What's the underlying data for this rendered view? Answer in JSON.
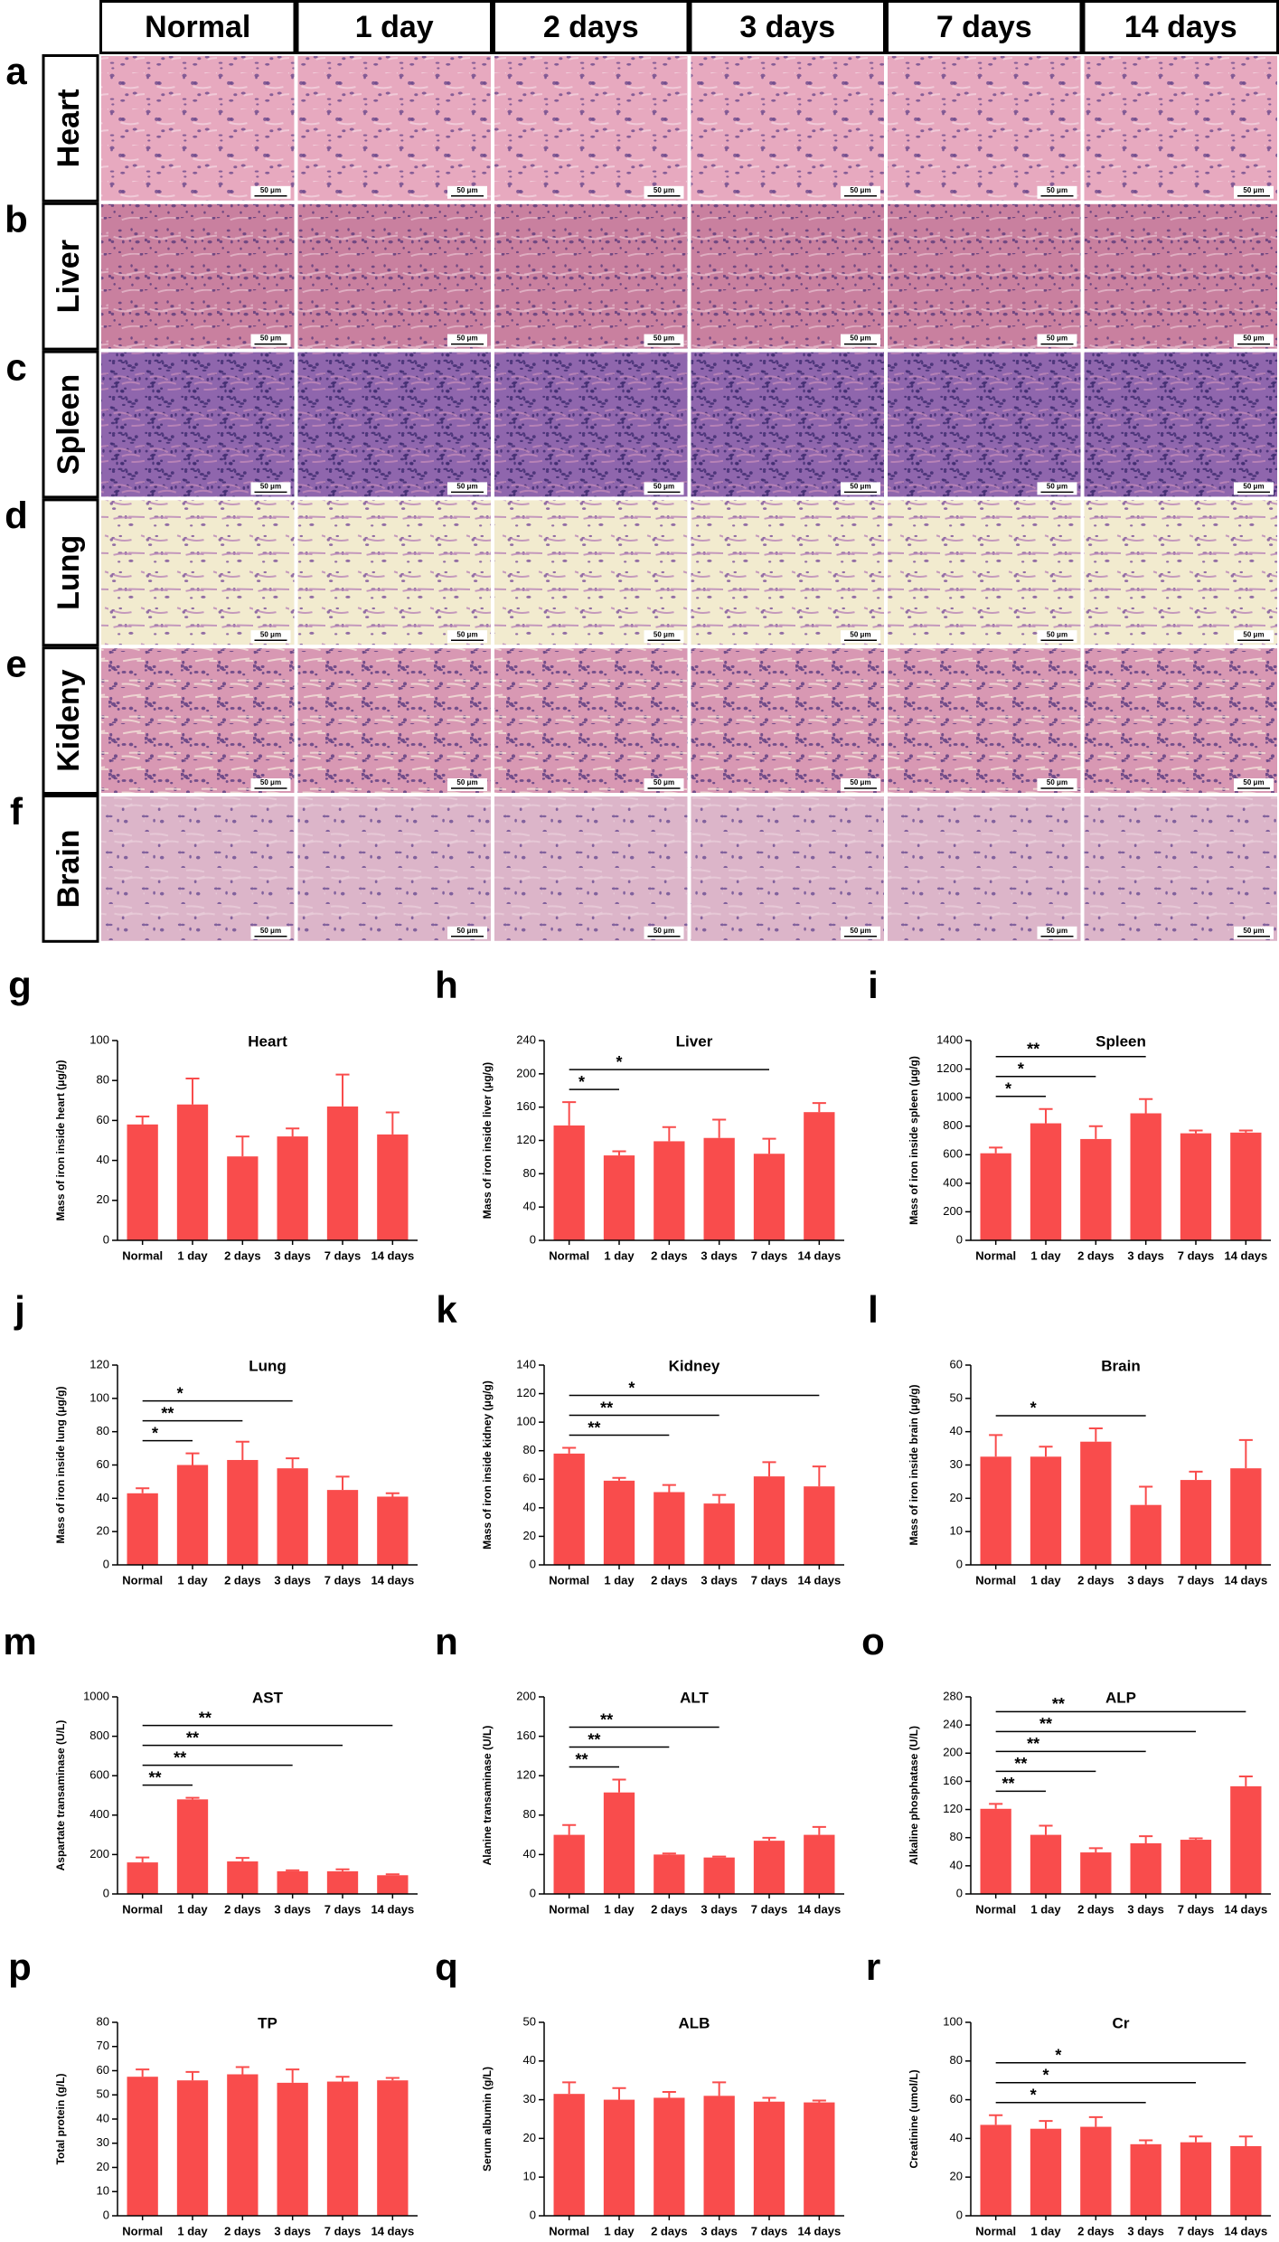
{
  "histology": {
    "columns": [
      "Normal",
      "1 day",
      "2 days",
      "3 days",
      "7 days",
      "14 days"
    ],
    "rows": [
      {
        "panel": "a",
        "label": "Heart"
      },
      {
        "panel": "b",
        "label": "Liver"
      },
      {
        "panel": "c",
        "label": "Spleen"
      },
      {
        "panel": "d",
        "label": "Lung"
      },
      {
        "panel": "e",
        "label": "Kideny"
      },
      {
        "panel": "f",
        "label": "Brain"
      }
    ],
    "scale_bar": "50 μm"
  },
  "chart_data": [
    {
      "type": "bar",
      "panel": "g",
      "title": "Heart",
      "y_label": "Mass of iron inside heart (μg/g)",
      "color": "#f94c4c",
      "categories": [
        "Normal",
        "1 day",
        "2 days",
        "3 days",
        "7 days",
        "14 days"
      ],
      "values": [
        58,
        68,
        42,
        52,
        67,
        53
      ],
      "errors": [
        4,
        13,
        10,
        4,
        16,
        11
      ],
      "ylim": [
        0,
        100
      ],
      "yticks": [
        0,
        20,
        40,
        60,
        80,
        100
      ],
      "significance": []
    },
    {
      "type": "bar",
      "panel": "h",
      "title": "Liver",
      "y_label": "Mass of iron inside liver (μg/g)",
      "color": "#f94c4c",
      "categories": [
        "Normal",
        "1 day",
        "2 days",
        "3 days",
        "7 days",
        "14 days"
      ],
      "values": [
        138,
        102,
        119,
        123,
        104,
        154
      ],
      "errors": [
        28,
        5,
        17,
        22,
        18,
        11
      ],
      "ylim": [
        0,
        240
      ],
      "yticks": [
        0,
        40,
        80,
        120,
        160,
        200,
        240
      ],
      "significance": [
        {
          "pair": [
            "Normal",
            "1 day"
          ],
          "label": "*"
        },
        {
          "pair": [
            "Normal",
            "7 days"
          ],
          "label": "*"
        }
      ]
    },
    {
      "type": "bar",
      "panel": "i",
      "title": "Spleen",
      "y_label": "Mass of iron inside spleen (μg/g)",
      "color": "#f94c4c",
      "categories": [
        "Normal",
        "1 day",
        "2 days",
        "3 days",
        "7 days",
        "14 days"
      ],
      "values": [
        610,
        820,
        710,
        890,
        750,
        755
      ],
      "errors": [
        40,
        100,
        90,
        100,
        20,
        15
      ],
      "ylim": [
        0,
        1400
      ],
      "yticks": [
        0,
        200,
        400,
        600,
        800,
        1000,
        1200,
        1400
      ],
      "significance": [
        {
          "pair": [
            "Normal",
            "1 day"
          ],
          "label": "*"
        },
        {
          "pair": [
            "Normal",
            "2 days"
          ],
          "label": "*"
        },
        {
          "pair": [
            "Normal",
            "3 days"
          ],
          "label": "**"
        }
      ]
    },
    {
      "type": "bar",
      "panel": "j",
      "title": "Lung",
      "y_label": "Mass of iron inside lung (μg/g)",
      "color": "#f94c4c",
      "categories": [
        "Normal",
        "1 day",
        "2 days",
        "3 days",
        "7 days",
        "14 days"
      ],
      "values": [
        43,
        60,
        63,
        58,
        45,
        41
      ],
      "errors": [
        3,
        7,
        11,
        6,
        8,
        2
      ],
      "ylim": [
        0,
        120
      ],
      "yticks": [
        0,
        20,
        40,
        60,
        80,
        100,
        120
      ],
      "significance": [
        {
          "pair": [
            "Normal",
            "1 day"
          ],
          "label": "*"
        },
        {
          "pair": [
            "Normal",
            "2 days"
          ],
          "label": "**"
        },
        {
          "pair": [
            "Normal",
            "3 days"
          ],
          "label": "*"
        }
      ]
    },
    {
      "type": "bar",
      "panel": "k",
      "title": "Kidney",
      "y_label": "Mass of iron inside kidney (μg/g)",
      "color": "#f94c4c",
      "categories": [
        "Normal",
        "1 day",
        "2 days",
        "3 days",
        "7 days",
        "14 days"
      ],
      "values": [
        78,
        59,
        51,
        43,
        62,
        55
      ],
      "errors": [
        4,
        2,
        5,
        6,
        10,
        14
      ],
      "ylim": [
        0,
        140
      ],
      "yticks": [
        0,
        20,
        40,
        60,
        80,
        100,
        120,
        140
      ],
      "significance": [
        {
          "pair": [
            "Normal",
            "2 days"
          ],
          "label": "**"
        },
        {
          "pair": [
            "Normal",
            "3 days"
          ],
          "label": "**"
        },
        {
          "pair": [
            "Normal",
            "14 days"
          ],
          "label": "*"
        }
      ]
    },
    {
      "type": "bar",
      "panel": "l",
      "title": "Brain",
      "y_label": "Mass of iron inside brain (μg/g)",
      "color": "#f94c4c",
      "categories": [
        "Normal",
        "1 day",
        "2 days",
        "3 days",
        "7 days",
        "14 days"
      ],
      "values": [
        32.5,
        32.5,
        37,
        18,
        25.5,
        29
      ],
      "errors": [
        6.5,
        3,
        4,
        5.5,
        2.5,
        8.5
      ],
      "ylim": [
        0,
        60
      ],
      "yticks": [
        0,
        10,
        20,
        30,
        40,
        50,
        60
      ],
      "significance": [
        {
          "pair": [
            "Normal",
            "3 days"
          ],
          "label": "*"
        }
      ]
    },
    {
      "type": "bar",
      "panel": "m",
      "title": "AST",
      "y_label": "Aspartate transaminase (U/L)",
      "color": "#f94c4c",
      "categories": [
        "Normal",
        "1 day",
        "2 days",
        "3 days",
        "7 days",
        "14 days"
      ],
      "values": [
        160,
        480,
        165,
        115,
        115,
        95
      ],
      "errors": [
        25,
        8,
        18,
        5,
        10,
        5
      ],
      "ylim": [
        0,
        1000
      ],
      "yticks": [
        0,
        200,
        400,
        600,
        800,
        1000
      ],
      "significance": [
        {
          "pair": [
            "Normal",
            "1 day"
          ],
          "label": "**"
        },
        {
          "pair": [
            "Normal",
            "3 days"
          ],
          "label": "**"
        },
        {
          "pair": [
            "Normal",
            "7 days"
          ],
          "label": "**"
        },
        {
          "pair": [
            "Normal",
            "14 days"
          ],
          "label": "**"
        }
      ]
    },
    {
      "type": "bar",
      "panel": "n",
      "title": "ALT",
      "y_label": "Alanine transaminase (U/L)",
      "color": "#f94c4c",
      "categories": [
        "Normal",
        "1 day",
        "2 days",
        "3 days",
        "7 days",
        "14 days"
      ],
      "values": [
        60,
        103,
        40,
        37,
        54,
        60
      ],
      "errors": [
        10,
        13,
        1,
        1,
        3,
        8
      ],
      "ylim": [
        0,
        200
      ],
      "yticks": [
        0,
        40,
        80,
        120,
        160,
        200
      ],
      "significance": [
        {
          "pair": [
            "Normal",
            "1 day"
          ],
          "label": "**"
        },
        {
          "pair": [
            "Normal",
            "2 days"
          ],
          "label": "**"
        },
        {
          "pair": [
            "Normal",
            "3 days"
          ],
          "label": "**"
        }
      ]
    },
    {
      "type": "bar",
      "panel": "o",
      "title": "ALP",
      "y_label": "Alkaline phosphatase (U/L)",
      "color": "#f94c4c",
      "categories": [
        "Normal",
        "1 day",
        "2 days",
        "3 days",
        "7 days",
        "14 days"
      ],
      "values": [
        121,
        84,
        59,
        72,
        77,
        153
      ],
      "errors": [
        7,
        13,
        6,
        10,
        2,
        14
      ],
      "ylim": [
        0,
        280
      ],
      "yticks": [
        0,
        40,
        80,
        120,
        160,
        200,
        240,
        280
      ],
      "significance": [
        {
          "pair": [
            "Normal",
            "1 day"
          ],
          "label": "**"
        },
        {
          "pair": [
            "Normal",
            "2 days"
          ],
          "label": "**"
        },
        {
          "pair": [
            "Normal",
            "3 days"
          ],
          "label": "**"
        },
        {
          "pair": [
            "Normal",
            "7 days"
          ],
          "label": "**"
        },
        {
          "pair": [
            "Normal",
            "14 days"
          ],
          "label": "**"
        }
      ]
    },
    {
      "type": "bar",
      "panel": "p",
      "title": "TP",
      "y_label": "Total protein (g/L)",
      "color": "#f94c4c",
      "categories": [
        "Normal",
        "1 day",
        "2 days",
        "3 days",
        "7 days",
        "14 days"
      ],
      "values": [
        57.5,
        56,
        58.5,
        55,
        55.5,
        56
      ],
      "errors": [
        3,
        3.5,
        3,
        5.5,
        2,
        1
      ],
      "ylim": [
        0,
        80
      ],
      "yticks": [
        0,
        10,
        20,
        30,
        40,
        50,
        60,
        70,
        80
      ],
      "significance": []
    },
    {
      "type": "bar",
      "panel": "q",
      "title": "ALB",
      "y_label": "Serum albumin (g/L)",
      "color": "#f94c4c",
      "categories": [
        "Normal",
        "1 day",
        "2 days",
        "3 days",
        "7 days",
        "14 days"
      ],
      "values": [
        31.5,
        30,
        30.5,
        31,
        29.5,
        29.3
      ],
      "errors": [
        3,
        3,
        1.5,
        3.5,
        1,
        0.5
      ],
      "ylim": [
        0,
        50
      ],
      "yticks": [
        0,
        10,
        20,
        30,
        40,
        50
      ],
      "significance": []
    },
    {
      "type": "bar",
      "panel": "r",
      "title": "Cr",
      "y_label": "Creatinine (umol/L)",
      "color": "#f94c4c",
      "categories": [
        "Normal",
        "1 day",
        "2 days",
        "3 days",
        "7 days",
        "14 days"
      ],
      "values": [
        47,
        45,
        46,
        37,
        38,
        36
      ],
      "errors": [
        5,
        4,
        5,
        2,
        3,
        5
      ],
      "ylim": [
        0,
        100
      ],
      "yticks": [
        0,
        20,
        40,
        60,
        80,
        100
      ],
      "significance": [
        {
          "pair": [
            "Normal",
            "3 days"
          ],
          "label": "*"
        },
        {
          "pair": [
            "Normal",
            "7 days"
          ],
          "label": "*"
        },
        {
          "pair": [
            "Normal",
            "14 days"
          ],
          "label": "*"
        }
      ]
    }
  ]
}
